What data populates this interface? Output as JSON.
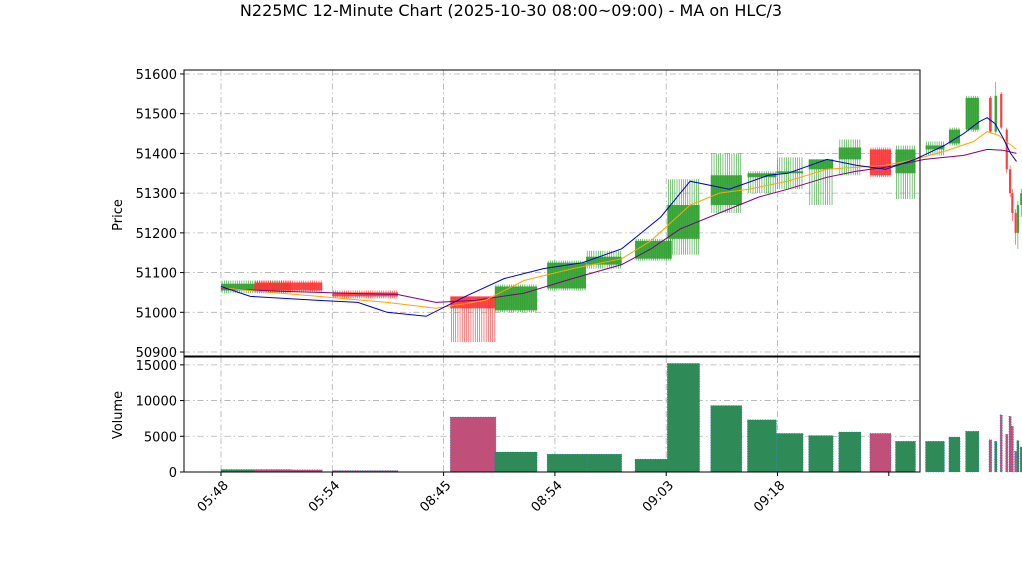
{
  "chart_data": {
    "type": "candlestick",
    "title": "N225MC 12-Minute Chart (2025-10-30 08:00~09:00) - MA on HLC/3",
    "x_ticks": [
      "05:48",
      "05:54",
      "08:45",
      "08:54",
      "09:03",
      "09:18"
    ],
    "price_panel": {
      "ylabel": "Price",
      "ylim": [
        50890,
        51610
      ],
      "y_ticks": [
        50900,
        51000,
        51100,
        51200,
        51300,
        51400,
        51500,
        51600
      ],
      "grid": true
    },
    "volume_panel": {
      "ylabel": "Volume",
      "ylim": [
        0,
        16100
      ],
      "y_ticks": [
        0,
        5000,
        10000,
        15000
      ],
      "grid": true
    },
    "colors": {
      "up": "#2ca02c",
      "down": "#ff3333",
      "volume_bar": "#1f77b4",
      "ma_short": "#0000cc",
      "ma_mid": "#ffa500",
      "ma_long": "#800080"
    },
    "candles": [
      {
        "o": 51055,
        "h": 51080,
        "l": 51048,
        "c": 51072,
        "v": 350
      },
      {
        "o": 51075,
        "h": 51080,
        "l": 51050,
        "c": 51055,
        "v": 300
      },
      {
        "o": 51050,
        "h": 51055,
        "l": 51035,
        "c": 51040,
        "v": 200
      },
      {
        "o": 51040,
        "h": 51040,
        "l": 50925,
        "c": 51010,
        "v": 7700
      },
      {
        "o": 51005,
        "h": 51070,
        "l": 51000,
        "c": 51065,
        "v": 2800
      },
      {
        "o": 51060,
        "h": 51130,
        "l": 51055,
        "c": 51125,
        "v": 2500
      },
      {
        "o": 51120,
        "h": 51155,
        "l": 51110,
        "c": 51140,
        "v": 2500
      },
      {
        "o": 51135,
        "h": 51185,
        "l": 51130,
        "c": 51180,
        "v": 1800
      },
      {
        "o": 51185,
        "h": 51335,
        "l": 51145,
        "c": 51270,
        "v": 15200
      },
      {
        "o": 51270,
        "h": 51400,
        "l": 51250,
        "c": 51345,
        "v": 9300
      },
      {
        "o": 51340,
        "h": 51355,
        "l": 51300,
        "c": 51350,
        "v": 7300
      },
      {
        "o": 51350,
        "h": 51390,
        "l": 51310,
        "c": 51355,
        "v": 5400
      },
      {
        "o": 51360,
        "h": 51385,
        "l": 51270,
        "c": 51385,
        "v": 5100
      },
      {
        "o": 51385,
        "h": 51435,
        "l": 51345,
        "c": 51415,
        "v": 5600
      },
      {
        "o": 51410,
        "h": 51415,
        "l": 51340,
        "c": 51345,
        "v": 5400
      },
      {
        "o": 51350,
        "h": 51420,
        "l": 51285,
        "c": 51410,
        "v": 4300
      },
      {
        "o": 51410,
        "h": 51430,
        "l": 51395,
        "c": 51420,
        "v": 4300
      },
      {
        "o": 51425,
        "h": 51465,
        "l": 51420,
        "c": 51460,
        "v": 4900
      },
      {
        "o": 51460,
        "h": 51545,
        "l": 51455,
        "c": 51540,
        "v": 5700
      },
      {
        "o": 51540,
        "h": 51545,
        "l": 51450,
        "c": 51455,
        "v": 4500
      },
      {
        "o": 51455,
        "h": 51580,
        "l": 51450,
        "c": 51545,
        "v": 4300
      },
      {
        "o": 51550,
        "h": 51555,
        "l": 51460,
        "c": 51465,
        "v": 8000
      },
      {
        "o": 51460,
        "h": 51465,
        "l": 51350,
        "c": 51360,
        "v": 5300
      },
      {
        "o": 51360,
        "h": 51370,
        "l": 51290,
        "c": 51300,
        "v": 7800
      },
      {
        "o": 51300,
        "h": 51310,
        "l": 51230,
        "c": 51250,
        "v": 6400
      },
      {
        "o": 51250,
        "h": 51260,
        "l": 51170,
        "c": 51200,
        "v": 2900
      },
      {
        "o": 51200,
        "h": 51280,
        "l": 51160,
        "c": 51270,
        "v": 4400
      },
      {
        "o": 51270,
        "h": 51310,
        "l": 51240,
        "c": 51300,
        "v": 3500
      }
    ],
    "ma_short": [
      [
        0,
        51065
      ],
      [
        3,
        51040
      ],
      [
        10,
        51030
      ],
      [
        14,
        51025
      ],
      [
        17,
        51000
      ],
      [
        21,
        50990
      ],
      [
        25,
        51040
      ],
      [
        29,
        51085
      ],
      [
        33,
        51110
      ],
      [
        37,
        51125
      ],
      [
        41,
        51160
      ],
      [
        45,
        51240
      ],
      [
        48,
        51330
      ],
      [
        52,
        51310
      ],
      [
        56,
        51345
      ],
      [
        58,
        51350
      ],
      [
        62,
        51385
      ],
      [
        65,
        51370
      ],
      [
        68,
        51360
      ],
      [
        71,
        51385
      ],
      [
        74,
        51420
      ],
      [
        76,
        51450
      ],
      [
        77.6,
        51480
      ],
      [
        78.4,
        51490
      ],
      [
        79.2,
        51475
      ],
      [
        80,
        51440
      ],
      [
        80.8,
        51400
      ],
      [
        81.4,
        51380
      ]
    ],
    "ma_mid": [
      [
        0,
        51062
      ],
      [
        5,
        51050
      ],
      [
        10,
        51040
      ],
      [
        17,
        51025
      ],
      [
        22,
        51010
      ],
      [
        27,
        51030
      ],
      [
        31,
        51080
      ],
      [
        36,
        51110
      ],
      [
        41,
        51135
      ],
      [
        44,
        51180
      ],
      [
        48,
        51270
      ],
      [
        51,
        51300
      ],
      [
        54,
        51310
      ],
      [
        58,
        51330
      ],
      [
        62,
        51360
      ],
      [
        65,
        51365
      ],
      [
        68,
        51370
      ],
      [
        71,
        51385
      ],
      [
        74,
        51405
      ],
      [
        77,
        51430
      ],
      [
        78.4,
        51455
      ],
      [
        79.6,
        51445
      ],
      [
        80.6,
        51425
      ],
      [
        81.4,
        51410
      ]
    ],
    "ma_long": [
      [
        0,
        51060
      ],
      [
        6,
        51053
      ],
      [
        10,
        51050
      ],
      [
        14,
        51047
      ],
      [
        18,
        51045
      ],
      [
        22,
        51025
      ],
      [
        26,
        51030
      ],
      [
        31,
        51048
      ],
      [
        36,
        51085
      ],
      [
        41,
        51120
      ],
      [
        44,
        51160
      ],
      [
        47,
        51210
      ],
      [
        51,
        51250
      ],
      [
        55,
        51290
      ],
      [
        58,
        51310
      ],
      [
        62,
        51340
      ],
      [
        65,
        51355
      ],
      [
        68,
        51365
      ],
      [
        72,
        51385
      ],
      [
        76,
        51395
      ],
      [
        78.4,
        51410
      ],
      [
        80,
        51408
      ],
      [
        81.4,
        51400
      ]
    ]
  }
}
